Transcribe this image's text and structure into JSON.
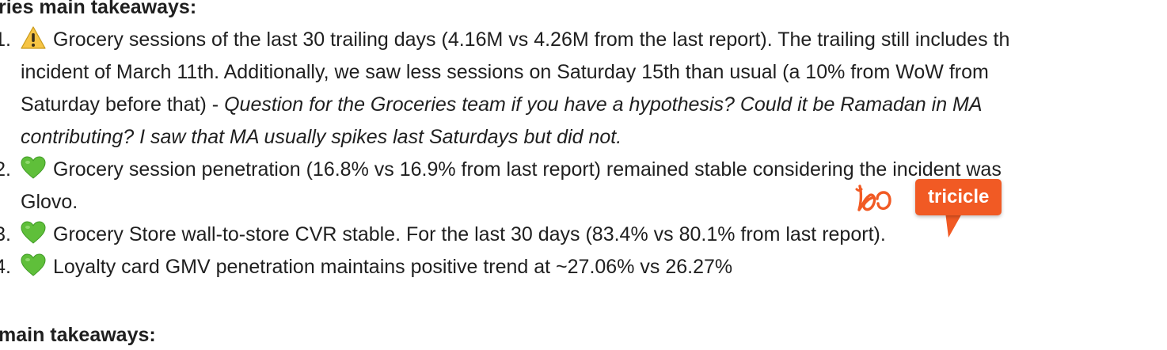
{
  "sections": {
    "top_heading": "ries main takeaways:",
    "bottom_heading": " main takeaways:"
  },
  "items": [
    {
      "number": "1.",
      "emoji": "warning-emoji",
      "line1": "Grocery sessions of the last 30 trailing days (4.16M vs 4.26M from the last report). The trailing still includes th",
      "line2": "incident of March 11th. Additionally, we saw less sessions on  Saturday 15th than usual (a 10% from WoW from",
      "line3_plain": "Saturday before that) - ",
      "line3_italic": "Question for the Groceries team if you have a hypothesis? Could it be Ramadan in MA",
      "line4_italic": "contributing? I saw that MA usually spikes last Saturdays but did not."
    },
    {
      "number": "2.",
      "emoji": "green-heart-emoji",
      "line1": "Grocery session penetration (16.8% vs 16.9% from last report) remained stable considering the incident was",
      "line2": "Glovo."
    },
    {
      "number": "3.",
      "emoji": "green-heart-emoji",
      "line1": "Grocery Store wall-to-store CVR stable. For the last 30 days (83.4% vs 80.1% from last report)."
    },
    {
      "number": "4.",
      "emoji": "green-heart-emoji",
      "line1": "Loyalty card GMV penetration maintains positive trend at ~27.06% vs 26.27%"
    }
  ],
  "overlay": {
    "tag_label": "tricicle",
    "icon": "tricicle-logo-icon",
    "accent_color": "#f15a24"
  },
  "colors": {
    "text": "#1f1f1f",
    "green_heart": "#5fbf3a",
    "warning_yellow": "#f6c445"
  }
}
